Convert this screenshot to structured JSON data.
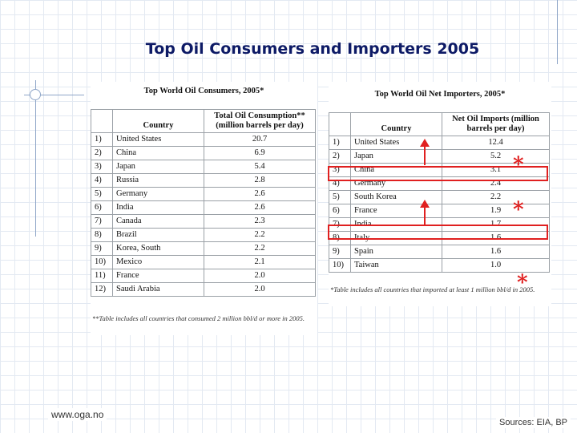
{
  "slide": {
    "title": "Top Oil Consumers and Importers 2005",
    "footer_left": "www.oga.no",
    "footer_right": "Sources: EIA, BP"
  },
  "consumers": {
    "caption": "Top World Oil Consumers, 2005*",
    "col_country": "Country",
    "col_value": "Total Oil Consumption** (million barrels per day)",
    "rows": [
      {
        "rank": "1)",
        "country": "United States",
        "value": "20.7"
      },
      {
        "rank": "2)",
        "country": "China",
        "value": "6.9"
      },
      {
        "rank": "3)",
        "country": "Japan",
        "value": "5.4"
      },
      {
        "rank": "4)",
        "country": "Russia",
        "value": "2.8"
      },
      {
        "rank": "5)",
        "country": "Germany",
        "value": "2.6"
      },
      {
        "rank": "6)",
        "country": "India",
        "value": "2.6"
      },
      {
        "rank": "7)",
        "country": "Canada",
        "value": "2.3"
      },
      {
        "rank": "8)",
        "country": "Brazil",
        "value": "2.2"
      },
      {
        "rank": "9)",
        "country": "Korea, South",
        "value": "2.2"
      },
      {
        "rank": "10)",
        "country": "Mexico",
        "value": "2.1"
      },
      {
        "rank": "11)",
        "country": "France",
        "value": "2.0"
      },
      {
        "rank": "12)",
        "country": "Saudi Arabia",
        "value": "2.0"
      }
    ],
    "footnote": "**Table includes all countries that consumed 2 million bbl/d or more in 2005."
  },
  "importers": {
    "caption": "Top World Oil Net Importers, 2005*",
    "col_country": "Country",
    "col_value": "Net Oil Imports (million barrels per day)",
    "rows": [
      {
        "rank": "1)",
        "country": "United States",
        "value": "12.4"
      },
      {
        "rank": "2)",
        "country": "Japan",
        "value": "5.2"
      },
      {
        "rank": "3)",
        "country": "China",
        "value": "3.1"
      },
      {
        "rank": "4)",
        "country": "Germany",
        "value": "2.4"
      },
      {
        "rank": "5)",
        "country": "South Korea",
        "value": "2.2"
      },
      {
        "rank": "6)",
        "country": "France",
        "value": "1.9"
      },
      {
        "rank": "7)",
        "country": "India",
        "value": "1.7"
      },
      {
        "rank": "8)",
        "country": "Italy",
        "value": "1.6"
      },
      {
        "rank": "9)",
        "country": "Spain",
        "value": "1.6"
      },
      {
        "rank": "10)",
        "country": "Taiwan",
        "value": "1.0"
      }
    ],
    "footnote": "*Table includes all countries that imported at least 1 million bbl/d in 2005."
  },
  "annotations": {
    "asterisk": "*",
    "highlight_color": "#e02020"
  }
}
